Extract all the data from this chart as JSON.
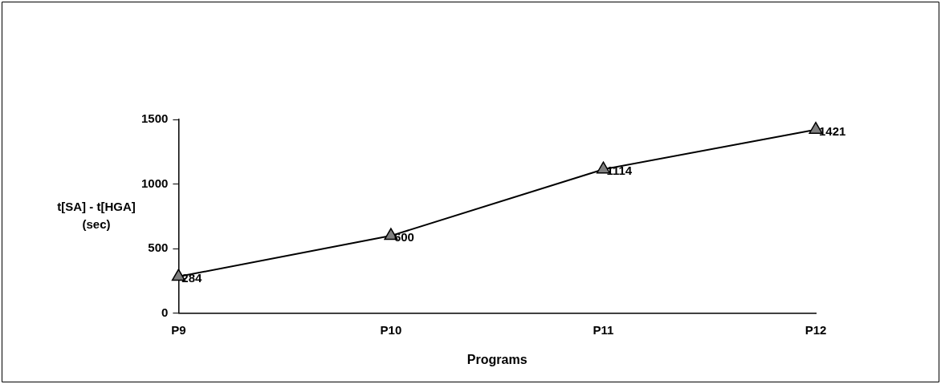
{
  "chart_data": {
    "type": "line",
    "xlabel": "Programs",
    "ylabel": "t[SA] - t[HGA]\n(sec)",
    "categories": [
      "P9",
      "P10",
      "P11",
      "P12"
    ],
    "series": [
      {
        "color": "#000000",
        "values": [
          284,
          600,
          1114,
          1421
        ]
      }
    ],
    "ylim": [
      0,
      1500
    ],
    "yticks": [
      0,
      500,
      1000,
      1500
    ],
    "grid": false,
    "legend": false,
    "marker": "triangle",
    "line_style": "solid",
    "data_labels": true
  }
}
